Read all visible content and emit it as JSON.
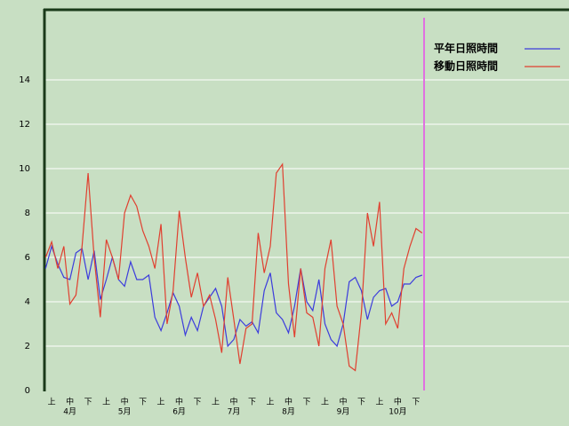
{
  "chart_data": {
    "type": "line",
    "categories": [
      null,
      "上",
      null,
      null,
      "中",
      null,
      null,
      "下",
      null,
      null,
      "上",
      null,
      null,
      "中",
      null,
      null,
      "下",
      null,
      null,
      "上",
      null,
      null,
      "中",
      null,
      null,
      "下",
      null,
      null,
      "上",
      null,
      null,
      "中",
      null,
      null,
      "下",
      null,
      null,
      "上",
      null,
      null,
      "中",
      null,
      null,
      "下",
      null,
      null,
      "上",
      null,
      null,
      "中",
      null,
      null,
      "下",
      null,
      null,
      "上",
      null,
      null,
      "中",
      null,
      null,
      "下",
      null
    ],
    "month_labels": [
      "4月",
      "5月",
      "6月",
      "7月",
      "8月",
      "9月",
      "10月"
    ],
    "series": [
      {
        "name": "平年日照時間",
        "color": "#3c3cdc",
        "values": [
          5.5,
          6.5,
          5.7,
          5.1,
          5.0,
          6.2,
          6.4,
          5.0,
          6.3,
          4.1,
          5.0,
          6.0,
          5.0,
          4.7,
          5.8,
          5.0,
          5.0,
          5.2,
          3.3,
          2.7,
          3.5,
          4.4,
          3.8,
          2.5,
          3.3,
          2.7,
          3.8,
          4.2,
          4.6,
          3.8,
          2.0,
          2.3,
          3.2,
          2.9,
          3.1,
          2.6,
          4.5,
          5.3,
          3.5,
          3.2,
          2.6,
          3.8,
          5.5,
          4.0,
          3.6,
          5.0,
          3.0,
          2.3,
          2.0,
          3.0,
          4.9,
          5.1,
          4.5,
          3.2,
          4.2,
          4.5,
          4.6,
          3.8,
          4.0,
          4.8,
          4.8,
          5.1,
          5.2
        ]
      },
      {
        "name": "移動日照時間",
        "color": "#e04030",
        "values": [
          6.0,
          6.7,
          5.5,
          6.5,
          3.9,
          4.3,
          6.5,
          9.8,
          6.0,
          3.3,
          6.8,
          6.0,
          5.0,
          8.0,
          8.8,
          8.3,
          7.2,
          6.5,
          5.5,
          7.5,
          3.0,
          4.5,
          8.1,
          6.0,
          4.2,
          5.3,
          3.8,
          4.3,
          3.2,
          1.7,
          5.1,
          3.2,
          1.2,
          2.8,
          3.0,
          7.1,
          5.3,
          6.5,
          9.8,
          10.2,
          4.8,
          2.4,
          5.5,
          3.5,
          3.3,
          2.0,
          5.5,
          6.8,
          3.8,
          3.0,
          1.1,
          0.9,
          3.5,
          8.0,
          6.5,
          8.5,
          3.0,
          3.5,
          2.8,
          5.5,
          6.5,
          7.3,
          7.1
        ]
      }
    ],
    "ylim": [
      0,
      17.2
    ],
    "yticks": [
      0,
      2,
      4,
      6,
      8,
      10,
      12,
      14
    ],
    "grid": true
  }
}
